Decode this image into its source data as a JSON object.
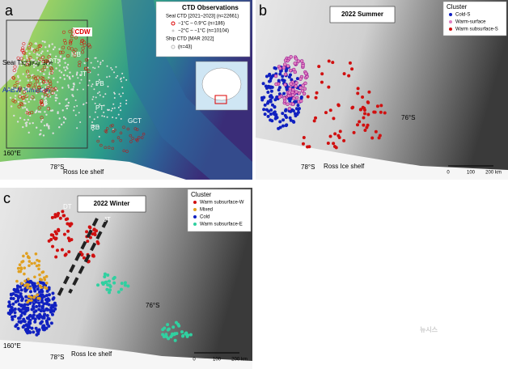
{
  "panels": [
    {
      "label": "a",
      "legend": {
        "title": "CTD Observations",
        "seal_heading": "Seal CTD [2021–2023] (n=22661)",
        "items": [
          "−1°C – 0.9°C (n=186)",
          "−2°C – −1°C (n=10104)"
        ],
        "ship_heading": "Ship CTD [MAR 2022]",
        "ship_item": "(n=43)"
      },
      "map_labels": [
        "CDW",
        "MB",
        "DT",
        "JT",
        "PB",
        "CB",
        "PT",
        "RB",
        "GCT",
        "Seal Tagging Site",
        "AABW formation",
        "78°S",
        "Ross Ice shelf",
        "160°E"
      ]
    },
    {
      "label": "b",
      "title": "2022 Summer",
      "legend": {
        "title": "Cluster",
        "items": [
          "Cold-S",
          "Warm-surface",
          "Warm subsurface-S"
        ]
      },
      "map_labels": [
        "76°S",
        "78°S",
        "Ross Ice shelf",
        "0",
        "100",
        "200 km"
      ]
    },
    {
      "label": "c",
      "title": "2022 Winter",
      "legend": {
        "title": "Cluster",
        "items": [
          "Warm subsurface-W",
          "Mixed",
          "Cold",
          "Warm subsurface-E"
        ]
      },
      "map_labels": [
        "DT",
        "JT",
        "76°S",
        "78°S",
        "Ross Ice shelf",
        "0",
        "100",
        "200 km",
        "160°E"
      ]
    }
  ],
  "watermark": "뉴시스"
}
